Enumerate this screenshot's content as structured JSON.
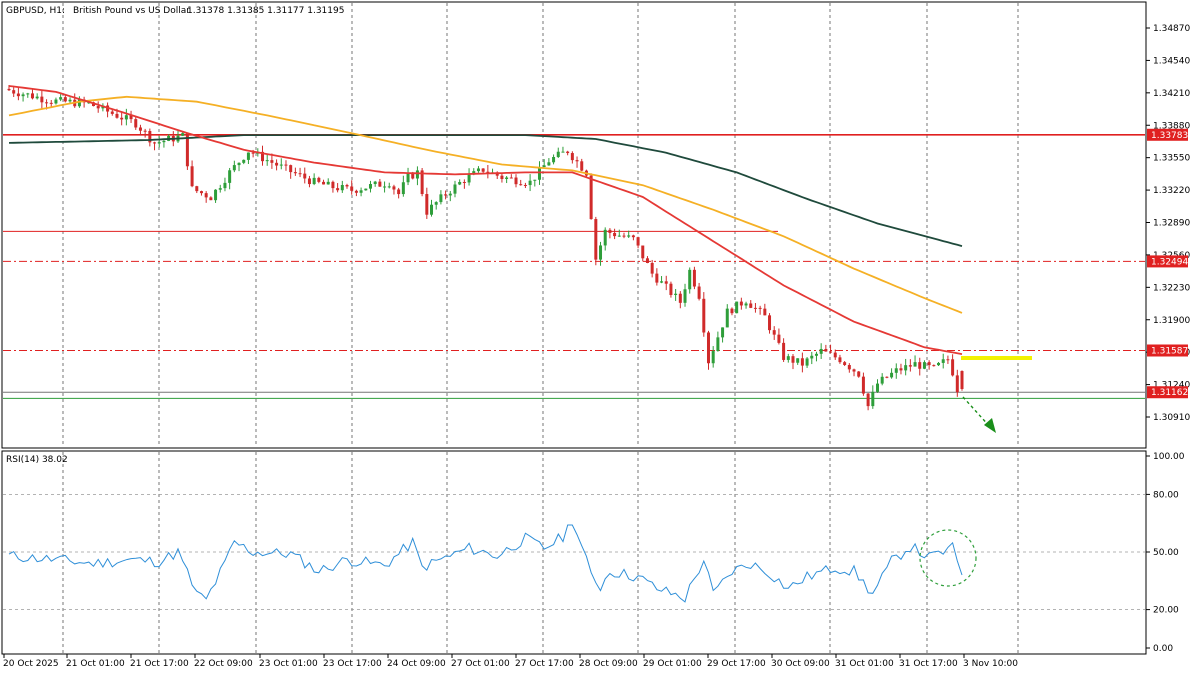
{
  "header": {
    "symbol": "GBPUSD, H1:",
    "description": "British Pound vs US Dollar",
    "ohlc": "1.31378 1.31385 1.31177 1.31195"
  },
  "rsi_label": "RSI(14) 38.02",
  "price_axis": {
    "ticks": [
      "1.34870",
      "1.34540",
      "1.34210",
      "1.33880",
      "1.33550",
      "1.33220",
      "1.32890",
      "1.32560",
      "1.32230",
      "1.31900",
      "1.31570",
      "1.31240",
      "1.30910"
    ]
  },
  "rsi_axis": {
    "ticks": [
      "100.00",
      "80.00",
      "50.00",
      "20.00",
      "0.00"
    ]
  },
  "time_axis": {
    "labels": [
      "20 Oct 2025",
      "21 Oct 01:00",
      "21 Oct 17:00",
      "22 Oct 09:00",
      "23 Oct 01:00",
      "23 Oct 17:00",
      "24 Oct 09:00",
      "27 Oct 01:00",
      "27 Oct 17:00",
      "28 Oct 09:00",
      "29 Oct 01:00",
      "29 Oct 17:00",
      "30 Oct 09:00",
      "31 Oct 01:00",
      "31 Oct 17:00",
      "3 Nov 10:00"
    ]
  },
  "price_tags": [
    {
      "id": "res1",
      "label": "1.33783",
      "value": 1.33783
    },
    {
      "id": "res2",
      "label": "1.32494",
      "value": 1.32494
    },
    {
      "id": "res3",
      "label": "1.31587",
      "value": 1.31587
    },
    {
      "id": "cur",
      "label": "1.31162",
      "value": 1.31162
    }
  ],
  "colors": {
    "up": "#2e9e3a",
    "down": "#d02a2a",
    "ema_fast": "#e53935",
    "ema_mid": "#f5b025",
    "ema_slow": "#1f4a3c",
    "rsi": "#2f8fd8",
    "level": "#e02020",
    "highlight": "#f2f200",
    "arrow": "#1a8f1a",
    "grid": "#555555"
  },
  "chart_data": {
    "type": "candlestick",
    "title": "GBPUSD, H1: British Pound vs US Dollar",
    "ylim": [
      1.3074,
      1.3503
    ],
    "last_ohlc": {
      "open": 1.31378,
      "high": 1.31385,
      "low": 1.31177,
      "close": 1.31195
    },
    "horizontal_levels": [
      1.33783,
      1.328,
      1.32494,
      1.31587,
      1.31162,
      1.311
    ],
    "anchors": [
      {
        "t": 0,
        "p": 1.3425
      },
      {
        "t": 10,
        "p": 1.3413
      },
      {
        "t": 18,
        "p": 1.341
      },
      {
        "t": 28,
        "p": 1.339
      },
      {
        "t": 32,
        "p": 1.337
      },
      {
        "t": 38,
        "p": 1.3377
      },
      {
        "t": 40,
        "p": 1.3323
      },
      {
        "t": 44,
        "p": 1.3315
      },
      {
        "t": 48,
        "p": 1.334
      },
      {
        "t": 52,
        "p": 1.3362
      },
      {
        "t": 60,
        "p": 1.3343
      },
      {
        "t": 66,
        "p": 1.333
      },
      {
        "t": 70,
        "p": 1.3325
      },
      {
        "t": 74,
        "p": 1.3322
      },
      {
        "t": 82,
        "p": 1.333
      },
      {
        "t": 84,
        "p": 1.3318
      },
      {
        "t": 86,
        "p": 1.3335
      },
      {
        "t": 88,
        "p": 1.334
      },
      {
        "t": 90,
        "p": 1.33
      },
      {
        "t": 94,
        "p": 1.3318
      },
      {
        "t": 98,
        "p": 1.3333
      },
      {
        "t": 102,
        "p": 1.3343
      },
      {
        "t": 106,
        "p": 1.3335
      },
      {
        "t": 112,
        "p": 1.333
      },
      {
        "t": 116,
        "p": 1.3352
      },
      {
        "t": 120,
        "p": 1.3362
      },
      {
        "t": 124,
        "p": 1.334
      },
      {
        "t": 126,
        "p": 1.3252
      },
      {
        "t": 128,
        "p": 1.328
      },
      {
        "t": 134,
        "p": 1.3272
      },
      {
        "t": 138,
        "p": 1.3237
      },
      {
        "t": 144,
        "p": 1.3208
      },
      {
        "t": 146,
        "p": 1.324
      },
      {
        "t": 148,
        "p": 1.3215
      },
      {
        "t": 150,
        "p": 1.3148
      },
      {
        "t": 154,
        "p": 1.3198
      },
      {
        "t": 158,
        "p": 1.321
      },
      {
        "t": 162,
        "p": 1.3193
      },
      {
        "t": 166,
        "p": 1.3152
      },
      {
        "t": 170,
        "p": 1.3145
      },
      {
        "t": 174,
        "p": 1.3158
      },
      {
        "t": 178,
        "p": 1.315
      },
      {
        "t": 182,
        "p": 1.3135
      },
      {
        "t": 184,
        "p": 1.3102
      },
      {
        "t": 186,
        "p": 1.3125
      },
      {
        "t": 190,
        "p": 1.3138
      },
      {
        "t": 194,
        "p": 1.3145
      },
      {
        "t": 198,
        "p": 1.314
      },
      {
        "t": 201,
        "p": 1.315
      },
      {
        "t": 202,
        "p": 1.3137
      },
      {
        "t": 203,
        "p": 1.31195
      }
    ],
    "ema_fast": [
      {
        "t": 0,
        "p": 1.3428
      },
      {
        "t": 10,
        "p": 1.3422
      },
      {
        "t": 25,
        "p": 1.34
      },
      {
        "t": 38,
        "p": 1.338
      },
      {
        "t": 50,
        "p": 1.3363
      },
      {
        "t": 65,
        "p": 1.335
      },
      {
        "t": 80,
        "p": 1.334
      },
      {
        "t": 95,
        "p": 1.3338
      },
      {
        "t": 110,
        "p": 1.334
      },
      {
        "t": 120,
        "p": 1.334
      },
      {
        "t": 135,
        "p": 1.3315
      },
      {
        "t": 150,
        "p": 1.327
      },
      {
        "t": 165,
        "p": 1.3225
      },
      {
        "t": 180,
        "p": 1.3188
      },
      {
        "t": 195,
        "p": 1.3162
      },
      {
        "t": 203,
        "p": 1.3155
      }
    ],
    "ema_mid": [
      {
        "t": 0,
        "p": 1.3398
      },
      {
        "t": 15,
        "p": 1.3412
      },
      {
        "t": 25,
        "p": 1.3417
      },
      {
        "t": 40,
        "p": 1.3412
      },
      {
        "t": 55,
        "p": 1.3398
      },
      {
        "t": 70,
        "p": 1.3383
      },
      {
        "t": 90,
        "p": 1.3362
      },
      {
        "t": 105,
        "p": 1.3348
      },
      {
        "t": 120,
        "p": 1.3342
      },
      {
        "t": 135,
        "p": 1.3327
      },
      {
        "t": 150,
        "p": 1.3302
      },
      {
        "t": 165,
        "p": 1.3275
      },
      {
        "t": 180,
        "p": 1.3242
      },
      {
        "t": 195,
        "p": 1.3212
      },
      {
        "t": 203,
        "p": 1.3197
      }
    ],
    "ema_slow": [
      {
        "t": 0,
        "p": 1.337
      },
      {
        "t": 30,
        "p": 1.3373
      },
      {
        "t": 50,
        "p": 1.3378
      },
      {
        "t": 80,
        "p": 1.3378
      },
      {
        "t": 110,
        "p": 1.3378
      },
      {
        "t": 125,
        "p": 1.3374
      },
      {
        "t": 140,
        "p": 1.336
      },
      {
        "t": 155,
        "p": 1.334
      },
      {
        "t": 170,
        "p": 1.3313
      },
      {
        "t": 185,
        "p": 1.3288
      },
      {
        "t": 203,
        "p": 1.3265
      }
    ],
    "rsi": {
      "name": "RSI(14)",
      "last": 38.02,
      "ylim": [
        0,
        100
      ],
      "levels": [
        80,
        50,
        20
      ],
      "anchors": [
        {
          "t": 0,
          "p": 48
        },
        {
          "t": 10,
          "p": 46
        },
        {
          "t": 18,
          "p": 44
        },
        {
          "t": 26,
          "p": 46
        },
        {
          "t": 32,
          "p": 45
        },
        {
          "t": 36,
          "p": 50
        },
        {
          "t": 40,
          "p": 28
        },
        {
          "t": 42,
          "p": 25
        },
        {
          "t": 46,
          "p": 44
        },
        {
          "t": 48,
          "p": 55
        },
        {
          "t": 52,
          "p": 50
        },
        {
          "t": 60,
          "p": 49
        },
        {
          "t": 66,
          "p": 40
        },
        {
          "t": 72,
          "p": 46
        },
        {
          "t": 80,
          "p": 43
        },
        {
          "t": 86,
          "p": 55
        },
        {
          "t": 88,
          "p": 42
        },
        {
          "t": 94,
          "p": 48
        },
        {
          "t": 98,
          "p": 52
        },
        {
          "t": 104,
          "p": 48
        },
        {
          "t": 110,
          "p": 57
        },
        {
          "t": 114,
          "p": 52
        },
        {
          "t": 118,
          "p": 58
        },
        {
          "t": 120,
          "p": 67
        },
        {
          "t": 124,
          "p": 38
        },
        {
          "t": 126,
          "p": 32
        },
        {
          "t": 128,
          "p": 40
        },
        {
          "t": 134,
          "p": 37
        },
        {
          "t": 138,
          "p": 31
        },
        {
          "t": 144,
          "p": 26
        },
        {
          "t": 148,
          "p": 46
        },
        {
          "t": 150,
          "p": 28
        },
        {
          "t": 154,
          "p": 40
        },
        {
          "t": 158,
          "p": 44
        },
        {
          "t": 162,
          "p": 39
        },
        {
          "t": 166,
          "p": 31
        },
        {
          "t": 170,
          "p": 37
        },
        {
          "t": 176,
          "p": 42
        },
        {
          "t": 180,
          "p": 40
        },
        {
          "t": 184,
          "p": 28
        },
        {
          "t": 188,
          "p": 45
        },
        {
          "t": 192,
          "p": 53
        },
        {
          "t": 196,
          "p": 47
        },
        {
          "t": 201,
          "p": 52
        },
        {
          "t": 203,
          "p": 38
        }
      ]
    }
  }
}
